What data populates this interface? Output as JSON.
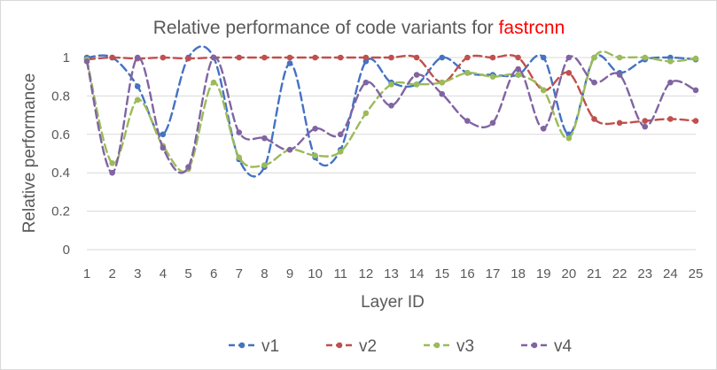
{
  "chart_data": {
    "type": "line",
    "title": "Relative performance of code variants for ",
    "title_highlight": "fastrcnn",
    "xlabel": "Layer ID",
    "ylabel": "Relative performance",
    "x": [
      1,
      2,
      3,
      4,
      5,
      6,
      7,
      8,
      9,
      10,
      11,
      12,
      13,
      14,
      15,
      16,
      17,
      18,
      19,
      20,
      21,
      22,
      23,
      24,
      25
    ],
    "xticks": [
      "1",
      "2",
      "3",
      "4",
      "5",
      "6",
      "7",
      "8",
      "9",
      "10",
      "11",
      "12",
      "13",
      "14",
      "15",
      "16",
      "17",
      "18",
      "19",
      "20",
      "21",
      "22",
      "23",
      "24",
      "25"
    ],
    "yticks": [
      "0",
      "0.2",
      "0.4",
      "0.6",
      "0.8",
      "1"
    ],
    "ylim": [
      0,
      1
    ],
    "grid": true,
    "legend_position": "bottom",
    "series": [
      {
        "name": "v1",
        "color": "#4472c4",
        "values": [
          1.0,
          1.0,
          0.85,
          0.6,
          1.0,
          1.0,
          0.47,
          0.43,
          0.97,
          0.48,
          0.52,
          0.98,
          0.87,
          0.86,
          1.0,
          0.92,
          0.91,
          0.91,
          1.0,
          0.6,
          1.0,
          0.92,
          0.99,
          1.0,
          0.99
        ]
      },
      {
        "name": "v2",
        "color": "#c0504d",
        "values": [
          0.99,
          1.0,
          0.995,
          1.0,
          0.995,
          1.0,
          1.0,
          1.0,
          1.0,
          1.0,
          1.0,
          1.0,
          1.0,
          1.0,
          0.87,
          1.0,
          1.0,
          1.0,
          0.83,
          0.92,
          0.68,
          0.66,
          0.67,
          0.68,
          0.67
        ]
      },
      {
        "name": "v3",
        "color": "#9bbb59",
        "values": [
          0.99,
          0.45,
          0.78,
          0.54,
          0.42,
          0.87,
          0.48,
          0.44,
          0.52,
          0.49,
          0.51,
          0.71,
          0.86,
          0.86,
          0.87,
          0.92,
          0.9,
          0.91,
          0.83,
          0.58,
          1.0,
          1.0,
          1.0,
          0.98,
          0.995
        ]
      },
      {
        "name": "v4",
        "color": "#8064a2",
        "values": [
          0.98,
          0.4,
          1.0,
          0.53,
          0.43,
          1.0,
          0.61,
          0.58,
          0.52,
          0.63,
          0.6,
          0.87,
          0.75,
          0.91,
          0.81,
          0.67,
          0.66,
          0.94,
          0.63,
          1.0,
          0.87,
          0.91,
          0.64,
          0.87,
          0.83
        ]
      }
    ]
  }
}
